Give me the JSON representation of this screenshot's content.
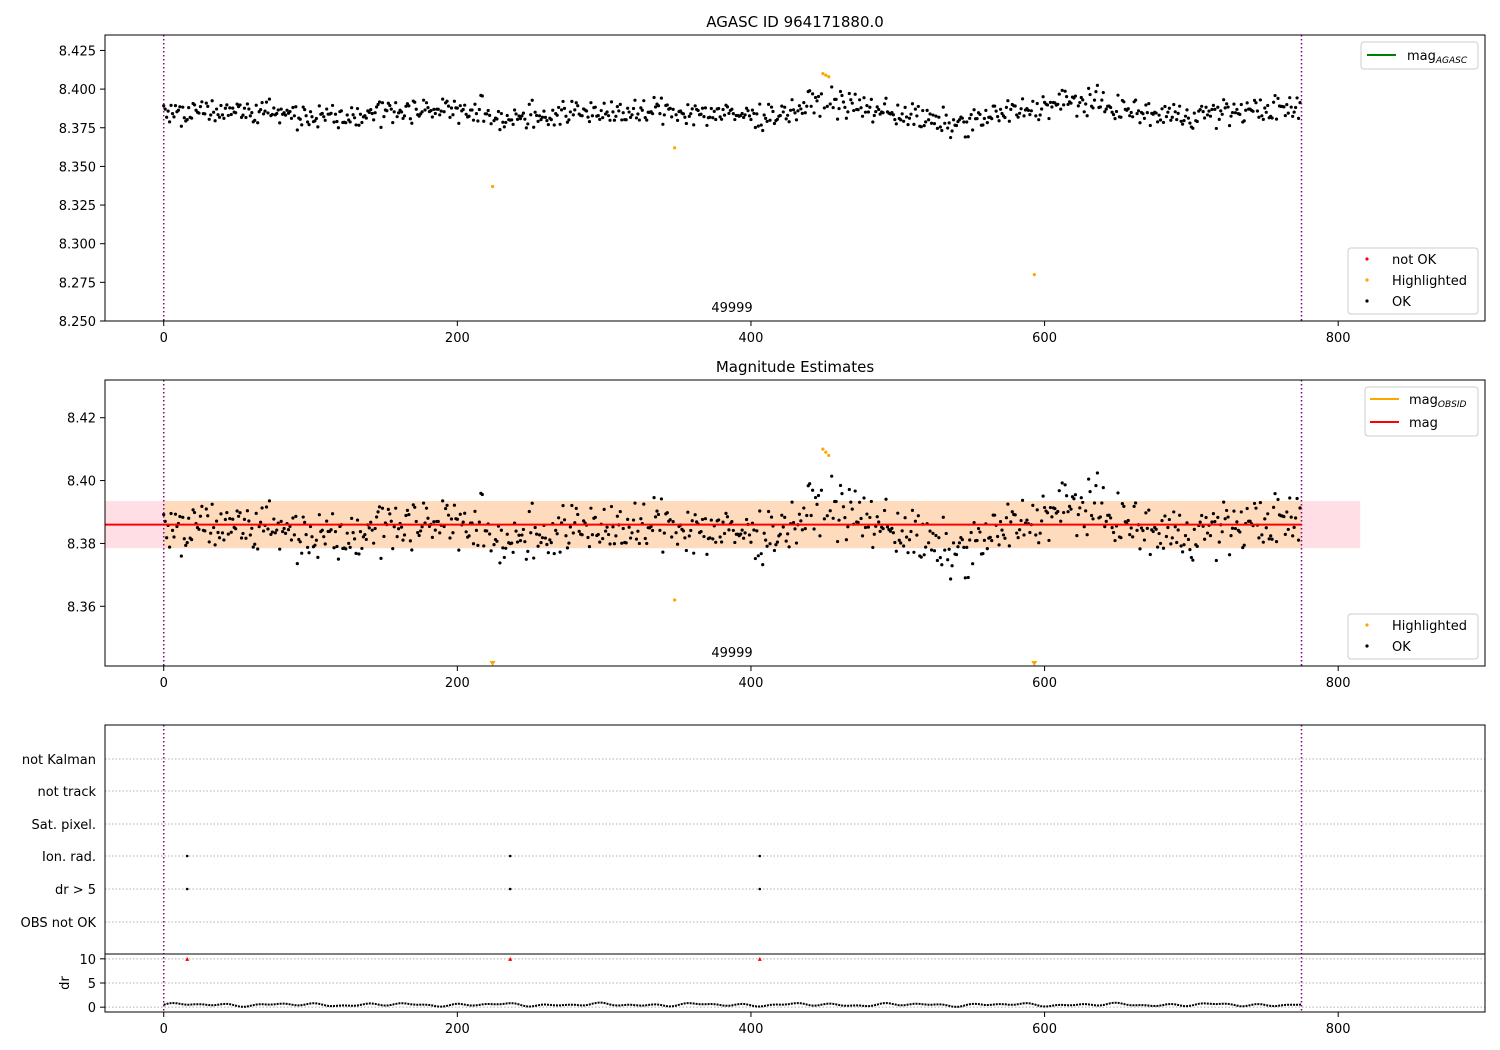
{
  "chart_data": [
    {
      "type": "scatter",
      "title": "AGASC ID 964171880.0",
      "annotation": "49999",
      "xlim": [
        -40,
        900
      ],
      "ylim": [
        8.25,
        8.435
      ],
      "xticks": [
        0,
        200,
        400,
        600,
        800
      ],
      "yticks": [
        8.25,
        8.275,
        8.3,
        8.325,
        8.35,
        8.375,
        8.4,
        8.425
      ],
      "yticklabels": [
        "8.250",
        "8.275",
        "8.300",
        "8.325",
        "8.350",
        "8.375",
        "8.400",
        "8.425"
      ],
      "vlines": [
        0,
        775
      ],
      "baseline": 8.385,
      "noise": 0.007,
      "n_points": 775,
      "highlighted": [
        [
          224,
          8.337
        ],
        [
          348,
          8.362
        ],
        [
          449,
          8.41
        ],
        [
          451,
          8.409
        ],
        [
          453,
          8.408
        ],
        [
          593,
          8.28
        ]
      ],
      "legend_lines": [
        {
          "label": "mag",
          "sub": "AGASC",
          "color": "#008000"
        }
      ],
      "legend_points": [
        {
          "label": "not OK",
          "color": "#ff0000"
        },
        {
          "label": "Highlighted",
          "color": "#ffa500"
        },
        {
          "label": "OK",
          "color": "#000000"
        }
      ]
    },
    {
      "type": "scatter",
      "title": "Magnitude Estimates",
      "annotation": "49999",
      "xlim": [
        -40,
        900
      ],
      "ylim": [
        8.341,
        8.432
      ],
      "xticks": [
        0,
        200,
        400,
        600,
        800
      ],
      "yticks": [
        8.36,
        8.38,
        8.4,
        8.42
      ],
      "yticklabels": [
        "8.36",
        "8.38",
        "8.40",
        "8.42"
      ],
      "vlines": [
        0,
        775
      ],
      "mag_line": 8.386,
      "mag_band": [
        8.3785,
        8.3935
      ],
      "mag_band_x": [
        -40,
        815
      ],
      "obsid_band": [
        8.3785,
        8.3935
      ],
      "obsid_band_x": [
        0,
        775
      ],
      "highlighted": [
        [
          348,
          8.362
        ],
        [
          449,
          8.41
        ],
        [
          451,
          8.409
        ],
        [
          453,
          8.408
        ]
      ],
      "out_of_range_markers": [
        224,
        593
      ],
      "legend_lines": [
        {
          "label": "mag",
          "sub": "OBSID",
          "color": "#ffa500"
        },
        {
          "label": "mag",
          "sub": "",
          "color": "#ff0000"
        }
      ],
      "legend_points": [
        {
          "label": "Highlighted",
          "color": "#ffa500"
        },
        {
          "label": "OK",
          "color": "#000000"
        }
      ]
    },
    {
      "type": "scatter",
      "flag_labels": [
        "not Kalman",
        "not track",
        "Sat. pixel.",
        "Ion. rad.",
        "dr > 5",
        "OBS not OK"
      ],
      "flag_points": {
        "Ion. rad.": [
          16,
          236,
          406
        ],
        "dr > 5": [
          16,
          236,
          406
        ]
      },
      "xlim": [
        -40,
        900
      ],
      "xticks": [
        0,
        200,
        400,
        600,
        800
      ],
      "vlines": [
        0,
        775
      ],
      "dr": {
        "ylabel": "dr",
        "ylim": [
          -1,
          11
        ],
        "yticks": [
          0,
          5,
          10
        ],
        "typical": 0.5,
        "over_limit": [
          16,
          236,
          406
        ],
        "over_value": 10
      }
    }
  ],
  "colors": {
    "ok": "#000000",
    "highlighted": "#ffa500",
    "not_ok": "#ff0000",
    "vline": "#800080",
    "mag": "#ff0000",
    "mag_band": "#ffc0cb",
    "obsid_band": "#ffdab9",
    "grid": "#b0b0b0"
  }
}
